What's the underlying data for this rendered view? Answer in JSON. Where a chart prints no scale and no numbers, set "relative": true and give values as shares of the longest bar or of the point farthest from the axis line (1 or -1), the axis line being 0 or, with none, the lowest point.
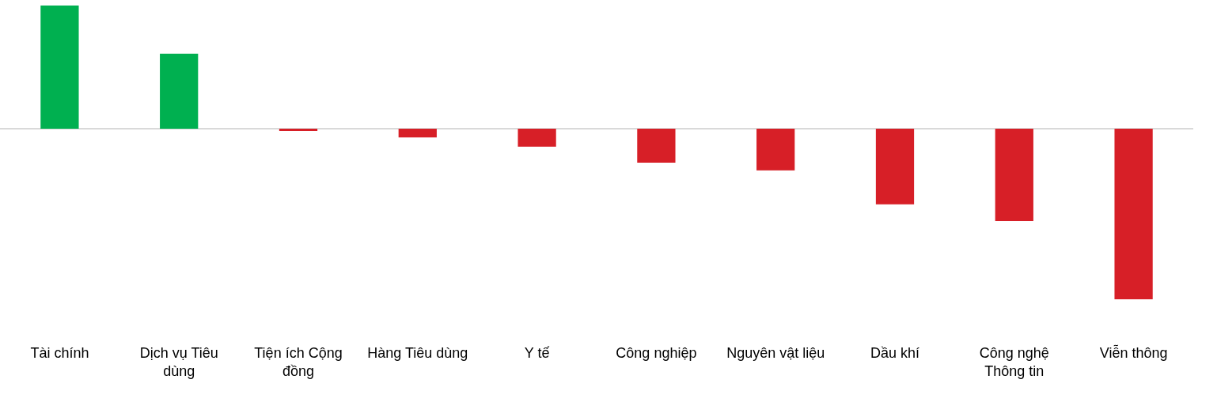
{
  "chart_data": {
    "type": "bar",
    "relative": true,
    "categories": [
      "Tài chính",
      "Dịch vụ Tiêu dùng",
      "Tiện ích Cộng đồng",
      "Hàng Tiêu dùng",
      "Y tế",
      "Công nghiệp",
      "Nguyên vật liệu",
      "Dầu khí",
      "Công nghệ Thông tin",
      "Viễn thông"
    ],
    "values": [
      0.722,
      0.44,
      -0.014,
      -0.051,
      -0.106,
      -0.199,
      -0.245,
      -0.444,
      -0.542,
      -1
    ],
    "colors": [
      "#00b050",
      "#00b050",
      "#d71f27",
      "#d71f27",
      "#d71f27",
      "#d71f27",
      "#d71f27",
      "#d71f27",
      "#d71f27",
      "#d71f27"
    ],
    "grid": false,
    "legend": false
  }
}
